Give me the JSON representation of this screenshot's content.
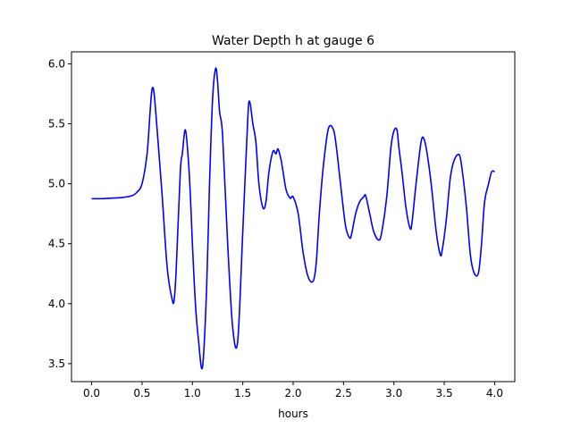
{
  "chart_data": {
    "type": "line",
    "title": "Water Depth h at gauge 6",
    "xlabel": "hours",
    "ylabel": "",
    "xlim": [
      -0.2,
      4.2
    ],
    "ylim": [
      3.35,
      6.1
    ],
    "xticks": [
      0.0,
      0.5,
      1.0,
      1.5,
      2.0,
      2.5,
      3.0,
      3.5,
      4.0
    ],
    "xtick_labels": [
      "0.0",
      "0.5",
      "1.0",
      "1.5",
      "2.0",
      "2.5",
      "3.0",
      "3.5",
      "4.0"
    ],
    "yticks": [
      3.5,
      4.0,
      4.5,
      5.0,
      5.5,
      6.0
    ],
    "ytick_labels": [
      "3.5",
      "4.0",
      "4.5",
      "5.0",
      "5.5",
      "6.0"
    ],
    "grid": false,
    "legend": "none",
    "series": [
      {
        "color": "#0000ff",
        "x": [
          0.0,
          0.1,
          0.2,
          0.3,
          0.4,
          0.45,
          0.5,
          0.55,
          0.58,
          0.6,
          0.62,
          0.65,
          0.7,
          0.75,
          0.8,
          0.82,
          0.84,
          0.88,
          0.9,
          0.93,
          0.96,
          0.98,
          1.0,
          1.03,
          1.06,
          1.1,
          1.14,
          1.17,
          1.2,
          1.23,
          1.25,
          1.27,
          1.3,
          1.35,
          1.4,
          1.45,
          1.5,
          1.55,
          1.57,
          1.6,
          1.63,
          1.66,
          1.7,
          1.73,
          1.76,
          1.8,
          1.83,
          1.85,
          1.88,
          1.9,
          1.93,
          1.97,
          2.0,
          2.05,
          2.1,
          2.15,
          2.2,
          2.23,
          2.26,
          2.3,
          2.35,
          2.4,
          2.43,
          2.47,
          2.52,
          2.56,
          2.58,
          2.62,
          2.66,
          2.7,
          2.72,
          2.76,
          2.8,
          2.85,
          2.88,
          2.93,
          2.97,
          3.0,
          3.03,
          3.05,
          3.08,
          3.12,
          3.16,
          3.18,
          3.22,
          3.27,
          3.3,
          3.33,
          3.37,
          3.42,
          3.46,
          3.48,
          3.52,
          3.56,
          3.6,
          3.65,
          3.68,
          3.72,
          3.76,
          3.8,
          3.84,
          3.87,
          3.9,
          3.94,
          3.97,
          4.0
        ],
        "y": [
          4.875,
          4.876,
          4.88,
          4.885,
          4.9,
          4.93,
          5.0,
          5.25,
          5.6,
          5.79,
          5.75,
          5.45,
          4.9,
          4.3,
          4.03,
          4.04,
          4.3,
          5.1,
          5.25,
          5.45,
          5.2,
          4.9,
          4.5,
          4.0,
          3.7,
          3.47,
          4.1,
          5.0,
          5.7,
          5.96,
          5.85,
          5.6,
          5.4,
          4.5,
          3.8,
          3.69,
          4.6,
          5.55,
          5.68,
          5.5,
          5.35,
          5.0,
          4.8,
          4.85,
          5.1,
          5.27,
          5.25,
          5.29,
          5.2,
          5.1,
          4.95,
          4.88,
          4.89,
          4.75,
          4.42,
          4.22,
          4.19,
          4.35,
          4.75,
          5.15,
          5.46,
          5.45,
          5.3,
          5.0,
          4.65,
          4.55,
          4.58,
          4.75,
          4.85,
          4.89,
          4.9,
          4.75,
          4.6,
          4.53,
          4.6,
          4.9,
          5.3,
          5.44,
          5.45,
          5.3,
          5.1,
          4.8,
          4.63,
          4.68,
          5.0,
          5.35,
          5.37,
          5.25,
          5.0,
          4.6,
          4.41,
          4.45,
          4.7,
          5.05,
          5.2,
          5.24,
          5.1,
          4.8,
          4.4,
          4.25,
          4.26,
          4.5,
          4.85,
          5.0,
          5.1,
          5.1
        ]
      }
    ]
  }
}
